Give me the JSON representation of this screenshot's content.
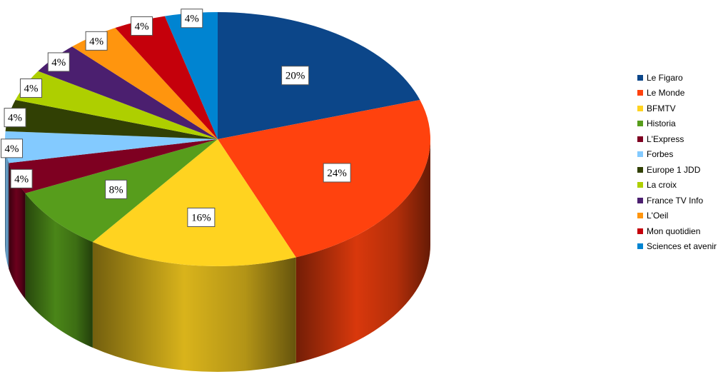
{
  "chart_data": {
    "type": "pie",
    "style": "3d",
    "legend_position": "right",
    "slices": [
      {
        "name": "Le Figaro",
        "value": 20,
        "label": "20%",
        "color": "#0c4689"
      },
      {
        "name": "Le Monde",
        "value": 24,
        "label": "24%",
        "color": "#ff420e"
      },
      {
        "name": "BFMTV",
        "value": 16,
        "label": "16%",
        "color": "#ffd320"
      },
      {
        "name": "Historia",
        "value": 8,
        "label": "8%",
        "color": "#579d1c"
      },
      {
        "name": "L'Express",
        "value": 4,
        "label": "4%",
        "color": "#7e0021"
      },
      {
        "name": "Forbes",
        "value": 4,
        "label": "4%",
        "color": "#83caff"
      },
      {
        "name": "Europe 1 JDD",
        "value": 4,
        "label": "4%",
        "color": "#314004"
      },
      {
        "name": "La croix",
        "value": 4,
        "label": "4%",
        "color": "#aecf00"
      },
      {
        "name": "France TV Info",
        "value": 4,
        "label": "4%",
        "color": "#4b1f6f"
      },
      {
        "name": "L'Oeil",
        "value": 4,
        "label": "4%",
        "color": "#ff950e"
      },
      {
        "name": "Mon quotidien",
        "value": 4,
        "label": "4%",
        "color": "#c5000b"
      },
      {
        "name": "Sciences et avenir",
        "value": 4,
        "label": "4%",
        "color": "#0084d1"
      }
    ]
  }
}
